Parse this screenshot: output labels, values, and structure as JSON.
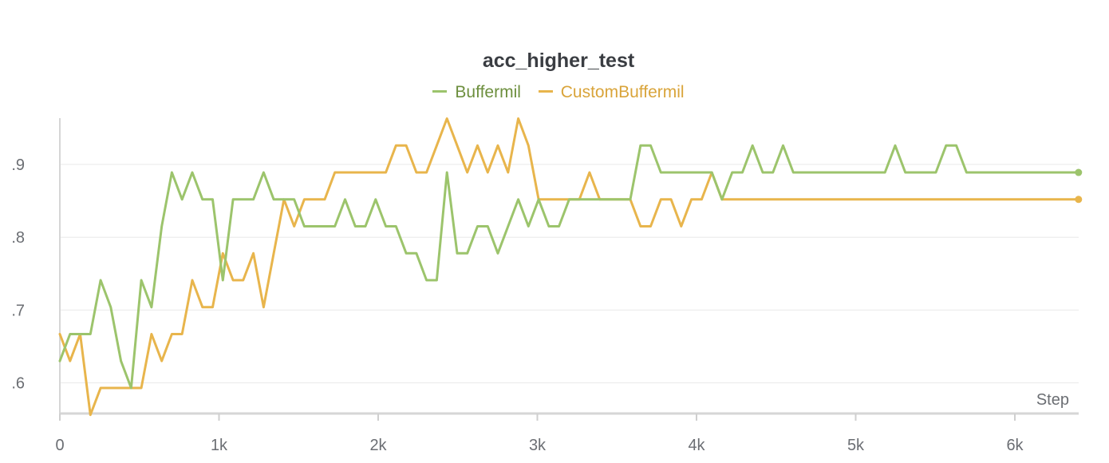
{
  "chart_data": {
    "type": "line",
    "title": "acc_higher_test",
    "xlabel": "Step",
    "ylabel": "",
    "xlim": [
      0,
      6400
    ],
    "ylim": [
      0.555,
      0.965
    ],
    "grid": true,
    "legend_position": "top-center",
    "x_ticks": [
      0,
      1000,
      2000,
      3000,
      4000,
      5000,
      6000
    ],
    "x_tick_labels": [
      "0",
      "1k",
      "2k",
      "3k",
      "4k",
      "5k",
      "6k"
    ],
    "y_ticks": [
      0.6,
      0.7,
      0.8,
      0.9
    ],
    "y_tick_labels": [
      ".6",
      ".7",
      ".8",
      ".9"
    ],
    "series": [
      {
        "name": "Buffermil",
        "color": "#9cc46c",
        "x": [
          0,
          64,
          128,
          192,
          256,
          320,
          384,
          448,
          512,
          576,
          640,
          704,
          768,
          832,
          896,
          960,
          1024,
          1088,
          1152,
          1216,
          1280,
          1344,
          1408,
          1472,
          1536,
          1600,
          1664,
          1728,
          1792,
          1856,
          1920,
          1984,
          2048,
          2112,
          2176,
          2240,
          2304,
          2368,
          2432,
          2496,
          2560,
          2624,
          2688,
          2752,
          2816,
          2880,
          2944,
          3008,
          3072,
          3136,
          3200,
          3264,
          3328,
          3392,
          3456,
          3520,
          3584,
          3648,
          3712,
          3776,
          3840,
          3904,
          3968,
          4032,
          4096,
          4160,
          4224,
          4288,
          4352,
          4416,
          4480,
          4544,
          4608,
          4672,
          4736,
          4800,
          4864,
          4928,
          4992,
          5056,
          5120,
          5184,
          5248,
          5312,
          5376,
          5440,
          5504,
          5568,
          5632,
          5696,
          5760,
          5824,
          5888,
          5952,
          6016,
          6080,
          6144,
          6208,
          6272,
          6336,
          6400
        ],
        "values": [
          0.63,
          0.667,
          0.667,
          0.667,
          0.741,
          0.704,
          0.63,
          0.593,
          0.741,
          0.704,
          0.815,
          0.889,
          0.852,
          0.889,
          0.852,
          0.852,
          0.741,
          0.852,
          0.852,
          0.852,
          0.889,
          0.852,
          0.852,
          0.852,
          0.815,
          0.815,
          0.815,
          0.815,
          0.852,
          0.815,
          0.815,
          0.852,
          0.815,
          0.815,
          0.778,
          0.778,
          0.741,
          0.741,
          0.889,
          0.778,
          0.778,
          0.815,
          0.815,
          0.778,
          0.815,
          0.852,
          0.815,
          0.852,
          0.815,
          0.815,
          0.852,
          0.852,
          0.852,
          0.852,
          0.852,
          0.852,
          0.852,
          0.926,
          0.926,
          0.889,
          0.889,
          0.889,
          0.889,
          0.889,
          0.889,
          0.852,
          0.889,
          0.889,
          0.926,
          0.889,
          0.889,
          0.926,
          0.889,
          0.889,
          0.889,
          0.889,
          0.889,
          0.889,
          0.889,
          0.889,
          0.889,
          0.889,
          0.926,
          0.889,
          0.889,
          0.889,
          0.889,
          0.926,
          0.926,
          0.889,
          0.889,
          0.889,
          0.889,
          0.889,
          0.889,
          0.889,
          0.889,
          0.889,
          0.889,
          0.889,
          0.889
        ]
      },
      {
        "name": "CustomBuffermil",
        "color": "#e8b54c",
        "x": [
          0,
          64,
          128,
          192,
          256,
          320,
          384,
          448,
          512,
          576,
          640,
          704,
          768,
          832,
          896,
          960,
          1024,
          1088,
          1152,
          1216,
          1280,
          1344,
          1408,
          1472,
          1536,
          1600,
          1664,
          1728,
          1792,
          1856,
          1920,
          1984,
          2048,
          2112,
          2176,
          2240,
          2304,
          2368,
          2432,
          2496,
          2560,
          2624,
          2688,
          2752,
          2816,
          2880,
          2944,
          3008,
          3072,
          3136,
          3200,
          3264,
          3328,
          3392,
          3456,
          3520,
          3584,
          3648,
          3712,
          3776,
          3840,
          3904,
          3968,
          4032,
          4096,
          4160,
          4224,
          4288,
          4352,
          4416,
          4480,
          4544,
          4608,
          4672,
          4736,
          4800,
          4864,
          4928,
          4992,
          5056,
          5120,
          5184,
          5248,
          5312,
          5376,
          5440,
          5504,
          5568,
          5632,
          5696,
          5760,
          5824,
          5888,
          5952,
          6016,
          6080,
          6144,
          6208,
          6272,
          6336,
          6400
        ],
        "values": [
          0.667,
          0.63,
          0.667,
          0.556,
          0.593,
          0.593,
          0.593,
          0.593,
          0.593,
          0.667,
          0.63,
          0.667,
          0.667,
          0.741,
          0.704,
          0.704,
          0.778,
          0.741,
          0.741,
          0.778,
          0.704,
          0.778,
          0.852,
          0.815,
          0.852,
          0.852,
          0.852,
          0.889,
          0.889,
          0.889,
          0.889,
          0.889,
          0.889,
          0.926,
          0.926,
          0.889,
          0.889,
          0.926,
          0.963,
          0.926,
          0.889,
          0.926,
          0.889,
          0.926,
          0.889,
          0.963,
          0.926,
          0.852,
          0.852,
          0.852,
          0.852,
          0.852,
          0.889,
          0.852,
          0.852,
          0.852,
          0.852,
          0.815,
          0.815,
          0.852,
          0.852,
          0.815,
          0.852,
          0.852,
          0.889,
          0.852,
          0.852,
          0.852,
          0.852,
          0.852,
          0.852,
          0.852,
          0.852,
          0.852,
          0.852,
          0.852,
          0.852,
          0.852,
          0.852,
          0.852,
          0.852,
          0.852,
          0.852,
          0.852,
          0.852,
          0.852,
          0.852,
          0.852,
          0.852,
          0.852,
          0.852,
          0.852,
          0.852,
          0.852,
          0.852,
          0.852,
          0.852,
          0.852,
          0.852,
          0.852,
          0.852
        ]
      }
    ]
  }
}
